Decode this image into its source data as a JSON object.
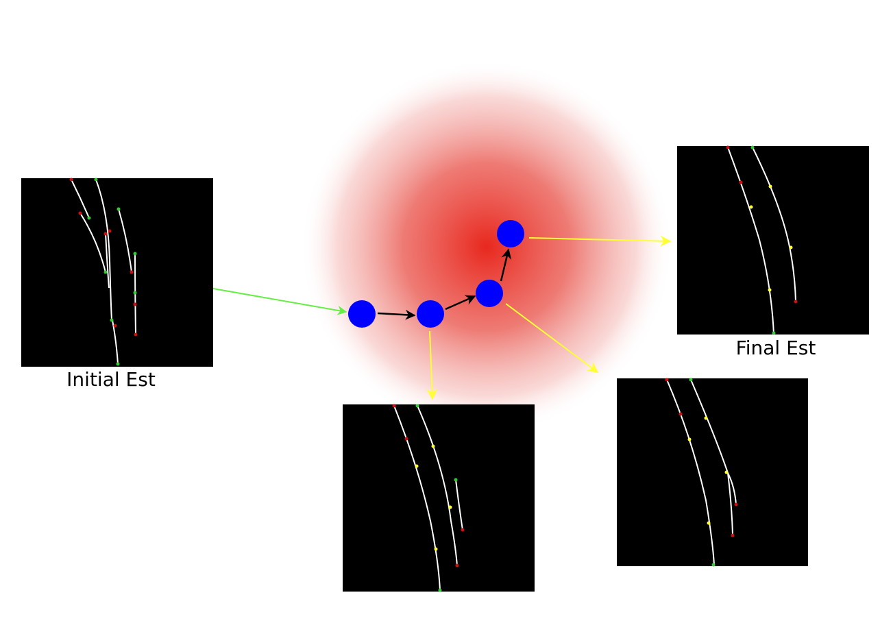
{
  "labels": {
    "initial": "Initial Est",
    "final": "Final Est"
  },
  "colors": {
    "background": "#ffffff",
    "panel": "#000000",
    "curve": "#ffffff",
    "node": "#0000ff",
    "glow_center": "#e8281e",
    "arrow_input": "#66ee44",
    "arrow_step": "#000000",
    "arrow_output": "#ffff33",
    "marker_green": "#33cc33",
    "marker_red": "#cc1111",
    "marker_yellow": "#ffff33"
  }
}
